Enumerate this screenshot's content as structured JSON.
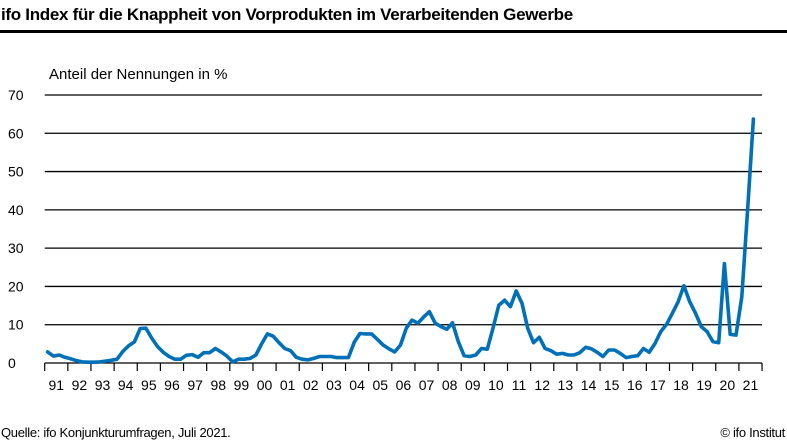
{
  "chart_data": {
    "type": "line",
    "title": "ifo Index für die Knappheit von Vorprodukten im Verarbeitenden Gewerbe",
    "ylabel": "Anteil der Nennungen in %",
    "xlabel": "",
    "ylim": [
      0,
      70
    ],
    "yticks": [
      0,
      10,
      20,
      30,
      40,
      50,
      60,
      70
    ],
    "xtick_labels": [
      "91",
      "92",
      "93",
      "94",
      "95",
      "96",
      "97",
      "98",
      "99",
      "00",
      "01",
      "02",
      "03",
      "04",
      "05",
      "06",
      "07",
      "08",
      "09",
      "10",
      "11",
      "12",
      "13",
      "14",
      "15",
      "16",
      "17",
      "18",
      "19",
      "20",
      "21"
    ],
    "x_range": [
      "1991Q1",
      "2021Q3"
    ],
    "frequency": "quarterly",
    "grid": "horizontal",
    "line_color": "#0070B8",
    "values": [
      2.9,
      1.8,
      2.1,
      1.5,
      1.1,
      0.6,
      0.3,
      0.2,
      0.2,
      0.3,
      0.5,
      0.7,
      1.0,
      3.0,
      4.5,
      5.5,
      9.0,
      9.1,
      6.5,
      4.3,
      2.8,
      1.7,
      1.0,
      1.0,
      2.0,
      2.2,
      1.5,
      2.7,
      2.7,
      3.8,
      2.9,
      1.8,
      0.3,
      1.0,
      1.0,
      1.2,
      2.1,
      5.0,
      7.6,
      7.0,
      5.3,
      3.8,
      3.2,
      1.5,
      1.0,
      0.8,
      1.2,
      1.7,
      1.7,
      1.7,
      1.4,
      1.4,
      1.4,
      5.4,
      7.7,
      7.6,
      7.6,
      6.2,
      4.7,
      3.7,
      2.9,
      4.7,
      9.1,
      11.2,
      10.4,
      12.0,
      13.4,
      10.4,
      9.5,
      8.8,
      10.5,
      5.6,
      1.9,
      1.7,
      2.1,
      3.8,
      3.6,
      9.1,
      15.1,
      16.4,
      14.7,
      18.8,
      15.6,
      9.1,
      5.3,
      6.7,
      3.8,
      3.2,
      2.3,
      2.5,
      2.1,
      2.1,
      2.7,
      4.1,
      3.7,
      2.8,
      1.7,
      3.4,
      3.4,
      2.5,
      1.4,
      1.7,
      1.9,
      3.8,
      2.8,
      5.1,
      8.2,
      10.1,
      13.0,
      16.0,
      20.2,
      16.0,
      13.0,
      9.5,
      8.2,
      5.6,
      5.3,
      26.0,
      7.5,
      7.3,
      17.3,
      40.0,
      63.7
    ]
  },
  "footer": {
    "source": "Quelle: ifo Konjunkturumfragen, Juli 2021.",
    "copyright": "© ifo Institut"
  }
}
